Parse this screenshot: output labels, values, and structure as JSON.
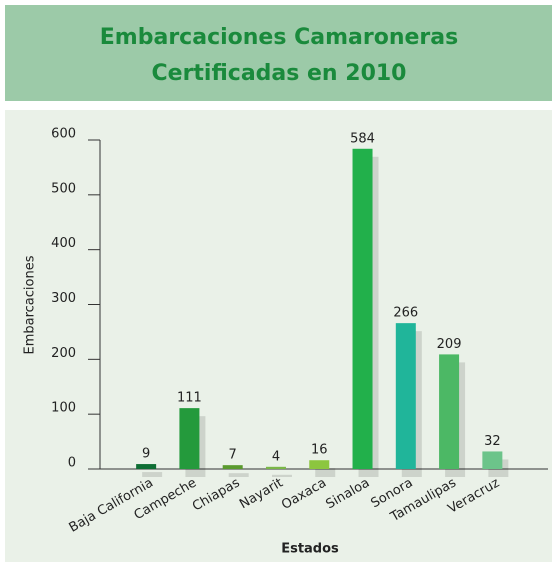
{
  "chart_data": {
    "type": "bar",
    "title": "Embarcaciones Camaroneras Certificadas en 2010",
    "x_label": "Estados",
    "y_label": "Embarcaciones",
    "categories": [
      "Baja California",
      "Campeche",
      "Chiapas",
      "Nayarit",
      "Oaxaca",
      "Sinaloa",
      "Sonora",
      "Tamaulipas",
      "Veracruz"
    ],
    "values": [
      9,
      111,
      7,
      4,
      16,
      584,
      266,
      209,
      32
    ],
    "colors": [
      "#0e6e34",
      "#249a3c",
      "#5a9a2e",
      "#7ab648",
      "#8cc63f",
      "#22b04b",
      "#20b59a",
      "#4cb865",
      "#6cc48a"
    ],
    "ylim": [
      0,
      600
    ],
    "yticks": [
      0,
      100,
      200,
      300,
      400,
      500,
      600
    ]
  }
}
